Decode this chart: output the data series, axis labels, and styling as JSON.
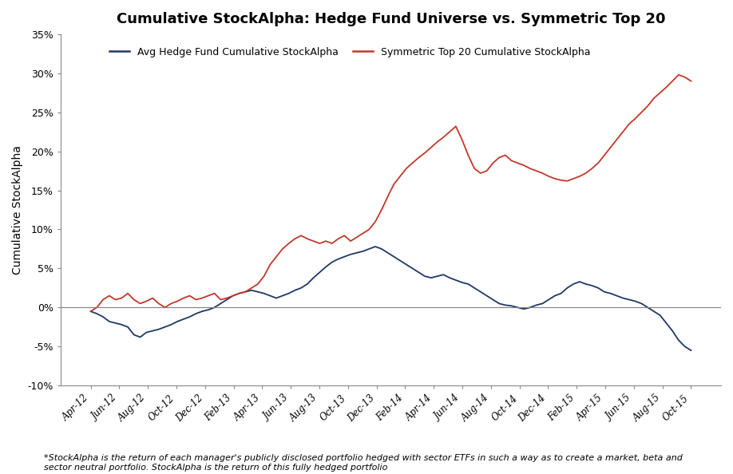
{
  "title": "Cumulative StockAlpha: Hedge Fund Universe vs. Symmetric Top 20",
  "ylabel": "Cumulative StockAlpha",
  "footnote": "*StockAlpha is the return of each manager's publicly disclosed portfolio hedged with sector ETFs in such a way as to create a market, beta and\nsector neutral portfolio. StockAlpha is the return of this fully hedged portfolio",
  "legend_labels": [
    "Avg Hedge Fund Cumulative StockAlpha",
    "Symmetric Top 20 Cumulative StockAlpha"
  ],
  "hf_color": "#1f3864",
  "sym_color": "#c0392b",
  "ylim": [
    -0.1,
    0.35
  ],
  "yticks": [
    -0.1,
    -0.05,
    0.0,
    0.05,
    0.1,
    0.15,
    0.2,
    0.25,
    0.3,
    0.35
  ],
  "xtick_labels": [
    "Apr-12",
    "Jun-12",
    "Aug-12",
    "Oct-12",
    "Dec-12",
    "Feb-13",
    "Apr-13",
    "Jun-13",
    "Aug-13",
    "Oct-13",
    "Dec-13",
    "Feb-14",
    "Apr-14",
    "Jun-14",
    "Aug-14",
    "Oct-14",
    "Dec-14",
    "Feb-15",
    "Apr-15",
    "Jun-15",
    "Aug-15",
    "Oct-15"
  ],
  "hf_data": [
    -0.005,
    -0.008,
    -0.012,
    -0.018,
    -0.02,
    -0.022,
    -0.025,
    -0.035,
    -0.038,
    -0.032,
    -0.03,
    -0.028,
    -0.025,
    -0.022,
    -0.018,
    -0.015,
    -0.012,
    -0.008,
    -0.005,
    -0.003,
    0.0,
    0.005,
    0.01,
    0.015,
    0.018,
    0.02,
    0.022,
    0.02,
    0.018,
    0.015,
    0.012,
    0.015,
    0.018,
    0.022,
    0.025,
    0.03,
    0.038,
    0.045,
    0.052,
    0.058,
    0.062,
    0.065,
    0.068,
    0.07,
    0.072,
    0.075,
    0.078,
    0.075,
    0.07,
    0.065,
    0.06,
    0.055,
    0.05,
    0.045,
    0.04,
    0.038,
    0.04,
    0.042,
    0.038,
    0.035,
    0.032,
    0.03,
    0.025,
    0.02,
    0.015,
    0.01,
    0.005,
    0.003,
    0.002,
    0.0,
    -0.002,
    0.0,
    0.003,
    0.005,
    0.01,
    0.015,
    0.018,
    0.025,
    0.03,
    0.033,
    0.03,
    0.028,
    0.025,
    0.02,
    0.018,
    0.015,
    0.012,
    0.01,
    0.008,
    0.005,
    0.0,
    -0.005,
    -0.01,
    -0.02,
    -0.03,
    -0.042,
    -0.05,
    -0.055
  ],
  "sym_data": [
    -0.005,
    0.0,
    0.01,
    0.015,
    0.01,
    0.012,
    0.018,
    0.01,
    0.005,
    0.008,
    0.012,
    0.005,
    0.0,
    0.005,
    0.008,
    0.012,
    0.015,
    0.01,
    0.012,
    0.015,
    0.018,
    0.01,
    0.012,
    0.015,
    0.018,
    0.02,
    0.025,
    0.03,
    0.04,
    0.055,
    0.065,
    0.075,
    0.082,
    0.088,
    0.092,
    0.088,
    0.085,
    0.082,
    0.085,
    0.082,
    0.088,
    0.092,
    0.085,
    0.09,
    0.095,
    0.1,
    0.11,
    0.125,
    0.142,
    0.158,
    0.168,
    0.178,
    0.185,
    0.192,
    0.198,
    0.205,
    0.212,
    0.218,
    0.225,
    0.232,
    0.215,
    0.195,
    0.178,
    0.172,
    0.175,
    0.185,
    0.192,
    0.195,
    0.188,
    0.185,
    0.182,
    0.178,
    0.175,
    0.172,
    0.168,
    0.165,
    0.163,
    0.162,
    0.165,
    0.168,
    0.172,
    0.178,
    0.185,
    0.195,
    0.205,
    0.215,
    0.225,
    0.235,
    0.242,
    0.25,
    0.258,
    0.268,
    0.275,
    0.282,
    0.29,
    0.298,
    0.295,
    0.29
  ],
  "n_points": 98,
  "background_color": "#ffffff",
  "title_fontsize": 13,
  "axis_fontsize": 10,
  "footnote_fontsize": 8
}
